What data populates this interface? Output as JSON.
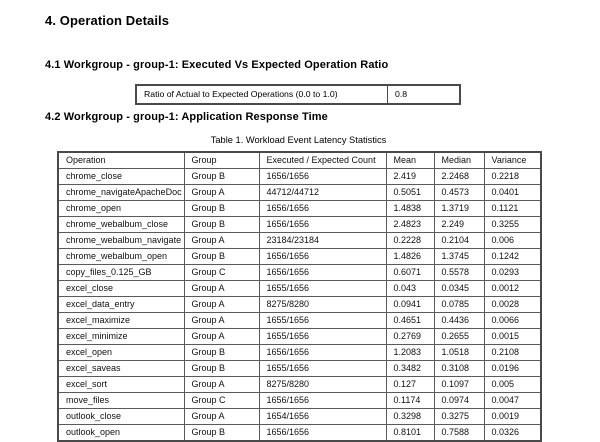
{
  "page": {
    "section_title": "4. Operation Details",
    "subsection_ratio_title": "4.1 Workgroup - group-1: Executed Vs Expected Operation Ratio",
    "subsection_response_title": "4.2 Workgroup - group-1: Application Response Time"
  },
  "ratio_table": {
    "label": "Ratio of Actual to Expected Operations (0.0 to 1.0)",
    "value": "0.8"
  },
  "latency_table": {
    "caption": "Table 1. Workload Event Latency Statistics",
    "columns": [
      "Operation",
      "Group",
      "Executed / Expected Count",
      "Mean",
      "Median",
      "Variance"
    ],
    "rows": [
      [
        "chrome_close",
        "Group B",
        "1656/1656",
        "2.419",
        "2.2468",
        "0.2218"
      ],
      [
        "chrome_navigateApacheDoc",
        "Group A",
        "44712/44712",
        "0.5051",
        "0.4573",
        "0.0401"
      ],
      [
        "chrome_open",
        "Group B",
        "1656/1656",
        "1.4838",
        "1.3719",
        "0.1121"
      ],
      [
        "chrome_webalbum_close",
        "Group B",
        "1656/1656",
        "2.4823",
        "2.249",
        "0.3255"
      ],
      [
        "chrome_webalbum_navigate",
        "Group A",
        "23184/23184",
        "0.2228",
        "0.2104",
        "0.006"
      ],
      [
        "chrome_webalbum_open",
        "Group B",
        "1656/1656",
        "1.4826",
        "1.3745",
        "0.1242"
      ],
      [
        "copy_files_0.125_GB",
        "Group C",
        "1656/1656",
        "0.6071",
        "0.5578",
        "0.0293"
      ],
      [
        "excel_close",
        "Group A",
        "1655/1656",
        "0.043",
        "0.0345",
        "0.0012"
      ],
      [
        "excel_data_entry",
        "Group A",
        "8275/8280",
        "0.0941",
        "0.0785",
        "0.0028"
      ],
      [
        "excel_maximize",
        "Group A",
        "1655/1656",
        "0.4651",
        "0.4436",
        "0.0066"
      ],
      [
        "excel_minimize",
        "Group A",
        "1655/1656",
        "0.2769",
        "0.2655",
        "0.0015"
      ],
      [
        "excel_open",
        "Group B",
        "1656/1656",
        "1.2083",
        "1.0518",
        "0.2108"
      ],
      [
        "excel_saveas",
        "Group B",
        "1655/1656",
        "0.3482",
        "0.3108",
        "0.0196"
      ],
      [
        "excel_sort",
        "Group A",
        "8275/8280",
        "0.127",
        "0.1097",
        "0.005"
      ],
      [
        "move_files",
        "Group C",
        "1656/1656",
        "0.1174",
        "0.0974",
        "0.0047"
      ],
      [
        "outlook_close",
        "Group A",
        "1654/1656",
        "0.3298",
        "0.3275",
        "0.0019"
      ],
      [
        "outlook_open",
        "Group B",
        "1656/1656",
        "0.8101",
        "0.7588",
        "0.0326"
      ]
    ]
  },
  "colors": {
    "background": "#ffffff",
    "text": "#000000",
    "table_border": "#4a4a4a"
  }
}
